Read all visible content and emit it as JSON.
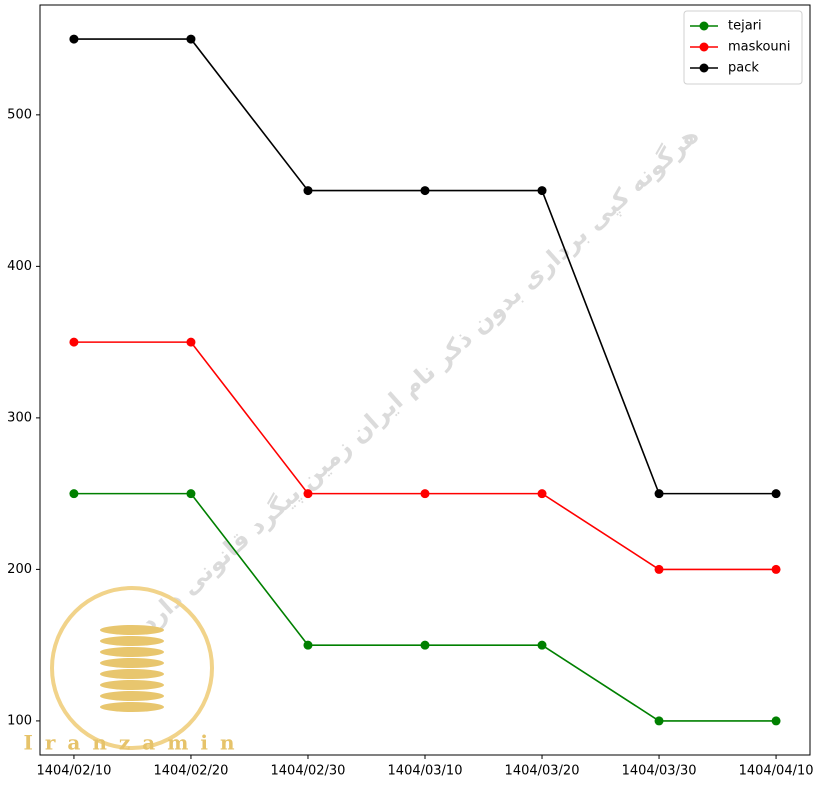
{
  "chart_data": {
    "type": "line",
    "categories": [
      "1404/02/10",
      "1404/02/20",
      "1404/02/30",
      "1404/03/10",
      "1404/03/20",
      "1404/03/30",
      "1404/04/10"
    ],
    "series": [
      {
        "name": "tejari",
        "color": "#008000",
        "values": [
          250,
          250,
          150,
          150,
          150,
          100,
          100
        ]
      },
      {
        "name": "maskouni",
        "color": "#ff0000",
        "values": [
          350,
          350,
          250,
          250,
          250,
          200,
          200
        ]
      },
      {
        "name": "pack",
        "color": "#000000",
        "values": [
          550,
          550,
          450,
          450,
          450,
          250,
          250
        ]
      }
    ],
    "ylim": [
      77.5,
      572.5
    ],
    "yticks": [
      100,
      200,
      300,
      400,
      500
    ],
    "legend": "upper right",
    "annotations": [
      "هرگونه کپی برداری بدون ذکر نام ایران زمین پیگرد قانونی دارد",
      "Iranzamin"
    ]
  }
}
